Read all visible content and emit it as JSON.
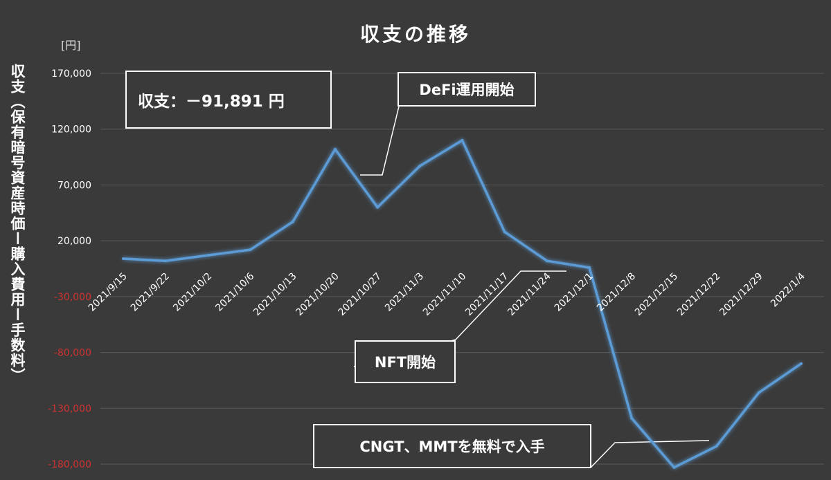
{
  "chart_data": {
    "type": "line",
    "title": "収支の推移",
    "unit_label": "[円]",
    "ylabel": "収支（保有暗号資産時価ー購入費用ー手数料）",
    "xlabel": "",
    "ylim": [
      -180000,
      170000
    ],
    "yticks": [
      {
        "value": 170000,
        "label": "170,000",
        "negative": false
      },
      {
        "value": 120000,
        "label": "120,000",
        "negative": false
      },
      {
        "value": 70000,
        "label": "70,000",
        "negative": false
      },
      {
        "value": 20000,
        "label": "20,000",
        "negative": false
      },
      {
        "value": -30000,
        "label": "-30,000",
        "negative": true
      },
      {
        "value": -80000,
        "label": "-80,000",
        "negative": true
      },
      {
        "value": -130000,
        "label": "-130,000",
        "negative": true
      },
      {
        "value": -180000,
        "label": "-180,000",
        "negative": true
      }
    ],
    "categories": [
      "2021/9/15",
      "2021/9/22",
      "2021/10/2",
      "2021/10/6",
      "2021/10/13",
      "2021/10/20",
      "2021/10/27",
      "2021/11/3",
      "2021/11/10",
      "2021/11/17",
      "2021/11/24",
      "2021/12/1",
      "2021/12/8",
      "2021/12/15",
      "2021/12/22",
      "2021/12/29",
      "2022/1/4"
    ],
    "series": [
      {
        "values": [
          4000,
          2000,
          7000,
          12000,
          37000,
          102000,
          50000,
          87000,
          110000,
          28000,
          2000,
          -4000,
          -139000,
          -183000,
          -164000,
          -116000,
          -90000
        ]
      }
    ],
    "grid": true,
    "legend": "none",
    "annotations": {
      "balance": "収支：－91,891 円",
      "defi": "DeFi運用開始",
      "nft": "NFT開始",
      "cngt": "CNGT、MMTを無料で入手"
    },
    "colors": {
      "background": "#3a3a3a",
      "line": "#5b9bd5",
      "grid": "#595959",
      "negative_tick": "#d23232",
      "positive_tick": "#ffffff",
      "category_label": "#ffffff"
    }
  }
}
